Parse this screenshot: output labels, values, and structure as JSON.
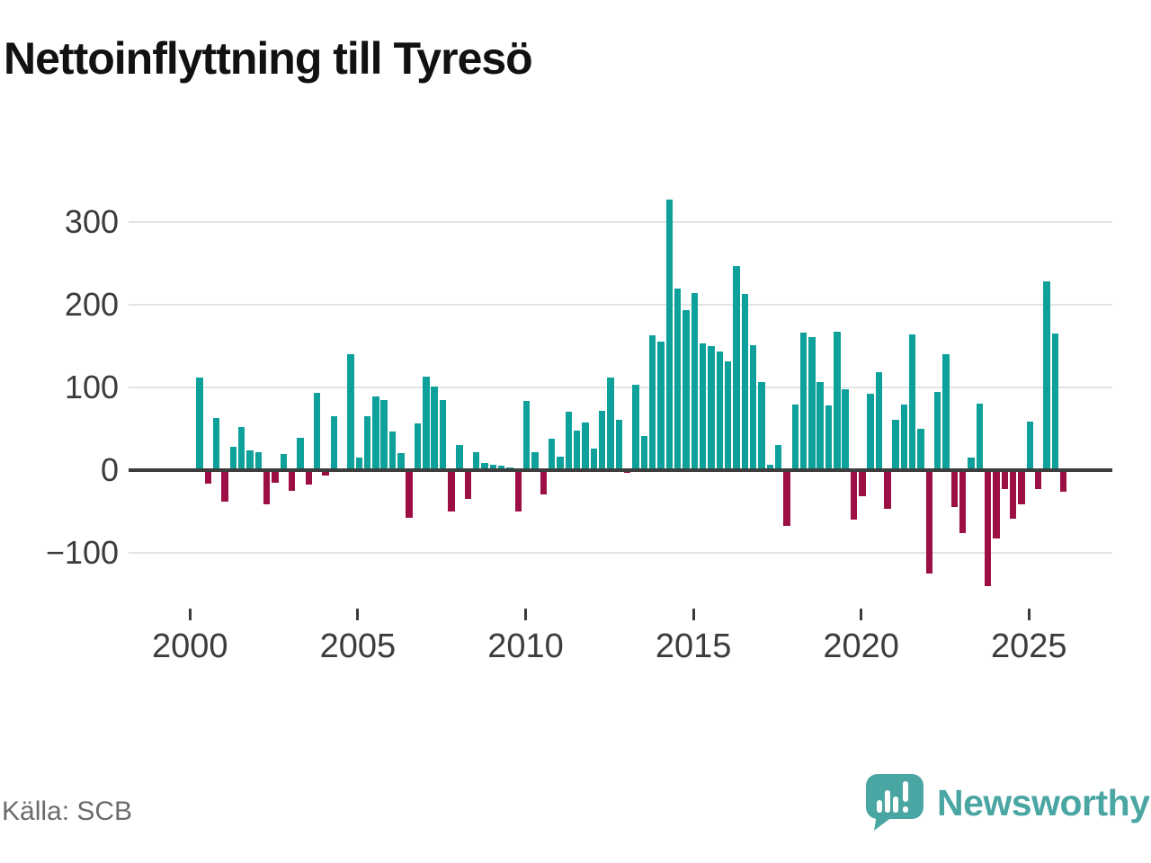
{
  "title": "Nettoinflyttning till Tyresö",
  "source": "Källa: SCB",
  "logo": {
    "brand": "Newsworthy"
  },
  "colors": {
    "positive": "#0ea19c",
    "negative": "#9c0f45",
    "axis": "#3d3d3d",
    "grid": "#e3e3e3",
    "brand": "#4aa6a2"
  },
  "chart_data": {
    "type": "bar",
    "title": "Nettoinflyttning till Tyresö",
    "frequency": "quarterly",
    "x_start": "2000-Q2",
    "values": [
      112,
      -16,
      63,
      -38,
      28,
      52,
      24,
      22,
      -41,
      -15,
      20,
      -25,
      39,
      -17,
      94,
      -6,
      65,
      0,
      140,
      15,
      65,
      89,
      85,
      47,
      21,
      -58,
      57,
      113,
      101,
      85,
      -50,
      30,
      -35,
      22,
      9,
      6,
      5,
      3,
      -50,
      84,
      22,
      -29,
      38,
      16,
      71,
      48,
      58,
      26,
      72,
      112,
      61,
      -3,
      103,
      41,
      163,
      155,
      327,
      220,
      194,
      214,
      153,
      150,
      144,
      132,
      247,
      213,
      151,
      106,
      6,
      30,
      -67,
      79,
      166,
      161,
      107,
      78,
      167,
      98,
      -60,
      -32,
      92,
      119,
      -47,
      61,
      79,
      164,
      50,
      -125,
      95,
      140,
      -45,
      -76,
      15,
      80,
      -140,
      -83,
      -23,
      -59,
      -41,
      59,
      -23,
      228,
      165,
      -26
    ],
    "y_ticks": [
      300,
      200,
      100,
      0,
      -100
    ],
    "y_tick_labels": [
      "300",
      "200",
      "100",
      "0",
      "−100"
    ],
    "x_tick_years": [
      "2000",
      "2005",
      "2010",
      "2015",
      "2020",
      "2025"
    ],
    "ylim": [
      -160,
      360
    ],
    "grid": true,
    "legend": "none"
  }
}
